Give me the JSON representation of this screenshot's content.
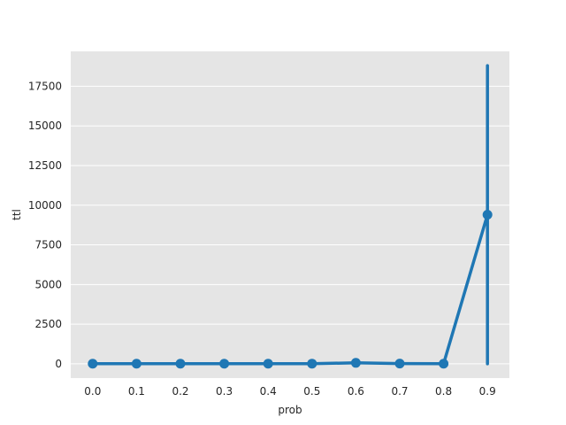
{
  "chart_data": {
    "type": "line",
    "xlabel": "prob",
    "ylabel": "ttl",
    "categories": [
      "0.0",
      "0.1",
      "0.2",
      "0.3",
      "0.4",
      "0.5",
      "0.6",
      "0.7",
      "0.8",
      "0.9"
    ],
    "series": [
      {
        "values": [
          5,
          6,
          5,
          8,
          6,
          10,
          60,
          15,
          8,
          9400
        ],
        "error_low": [
          5,
          6,
          5,
          8,
          6,
          10,
          60,
          15,
          8,
          0
        ],
        "error_high": [
          5,
          6,
          5,
          8,
          6,
          10,
          60,
          15,
          8,
          18800
        ],
        "color": "#1f77b4"
      }
    ],
    "y_ticks": [
      "0",
      "2500",
      "5000",
      "7500",
      "10000",
      "12500",
      "15000",
      "17500"
    ],
    "ylim": [
      -900,
      19700
    ],
    "grid": true,
    "background": "#e5e5e5",
    "legend": "none"
  }
}
